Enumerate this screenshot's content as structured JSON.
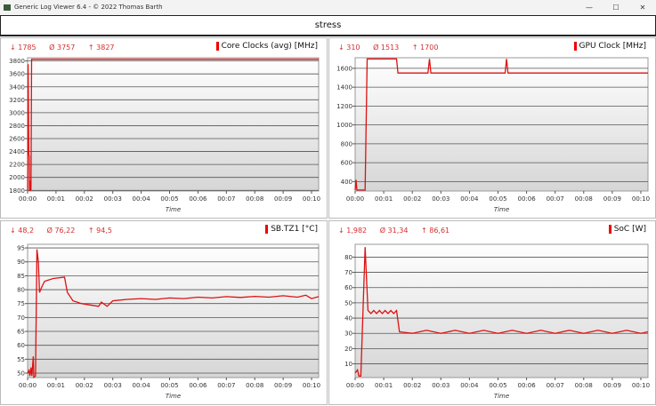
{
  "window": {
    "title": "Generic Log Viewer 6.4 - © 2022 Thomas Barth",
    "minimize": "—",
    "maximize": "☐",
    "close": "✕"
  },
  "header": {
    "title": "stress"
  },
  "colors": {
    "series": "#dd1111",
    "stats": "#d32f2f"
  },
  "chart_data": [
    {
      "type": "line",
      "title": "Core Clocks (avg) [MHz]",
      "stats": {
        "min": "↓ 1785",
        "avg": "Ø 3757",
        "max": "↑ 3827"
      },
      "xlabel": "Time",
      "xticks": [
        "00:00",
        "00:01",
        "00:02",
        "00:03",
        "00:04",
        "00:05",
        "00:06",
        "00:07",
        "00:08",
        "00:09",
        "00:10"
      ],
      "xlim": [
        0,
        10.25
      ],
      "yticks": [
        1800,
        2000,
        2200,
        2400,
        2600,
        2800,
        3000,
        3200,
        3400,
        3600,
        3800
      ],
      "ylim": [
        1790,
        3850
      ],
      "grid": true,
      "points": [
        [
          0,
          1800
        ],
        [
          0.02,
          3750
        ],
        [
          0.04,
          2350
        ],
        [
          0.06,
          2330
        ],
        [
          0.07,
          1800
        ],
        [
          0.09,
          1800
        ],
        [
          0.1,
          1950
        ],
        [
          0.12,
          1800
        ],
        [
          0.14,
          3827
        ],
        [
          10.25,
          3827
        ]
      ]
    },
    {
      "type": "line",
      "title": "GPU Clock [MHz]",
      "stats": {
        "min": "↓ 310",
        "avg": "Ø 1513",
        "max": "↑ 1700"
      },
      "xlabel": "Time",
      "xticks": [
        "00:00",
        "00:01",
        "00:02",
        "00:03",
        "00:04",
        "00:05",
        "00:06",
        "00:07",
        "00:08",
        "00:09",
        "00:10"
      ],
      "xlim": [
        0,
        10.25
      ],
      "yticks": [
        400,
        600,
        800,
        1000,
        1200,
        1400,
        1600
      ],
      "ylim": [
        300,
        1712
      ],
      "grid": true,
      "points": [
        [
          0,
          310
        ],
        [
          0.03,
          420
        ],
        [
          0.06,
          310
        ],
        [
          0.35,
          310
        ],
        [
          0.42,
          1700
        ],
        [
          1.45,
          1700
        ],
        [
          1.5,
          1550
        ],
        [
          2.55,
          1550
        ],
        [
          2.6,
          1700
        ],
        [
          2.65,
          1550
        ],
        [
          5.25,
          1550
        ],
        [
          5.3,
          1700
        ],
        [
          5.35,
          1550
        ],
        [
          10.25,
          1550
        ]
      ]
    },
    {
      "type": "line",
      "title": "SB.TZ1 [°C]",
      "stats": {
        "min": "↓ 48,2",
        "avg": "Ø 76,22",
        "max": "↑ 94,5"
      },
      "xlabel": "Time",
      "xticks": [
        "00:00",
        "00:01",
        "00:02",
        "00:03",
        "00:04",
        "00:05",
        "00:06",
        "00:07",
        "00:08",
        "00:09",
        "00:10"
      ],
      "xlim": [
        0,
        10.25
      ],
      "yticks": [
        50,
        55,
        60,
        65,
        70,
        75,
        80,
        85,
        90,
        95
      ],
      "ylim": [
        48.4,
        96.3
      ],
      "grid": true,
      "points": [
        [
          0,
          50
        ],
        [
          0.05,
          51
        ],
        [
          0.08,
          49
        ],
        [
          0.12,
          52
        ],
        [
          0.15,
          49
        ],
        [
          0.2,
          56
        ],
        [
          0.22,
          48.5
        ],
        [
          0.28,
          49
        ],
        [
          0.33,
          94.5
        ],
        [
          0.38,
          90
        ],
        [
          0.42,
          79
        ],
        [
          0.5,
          81
        ],
        [
          0.6,
          83
        ],
        [
          0.9,
          84
        ],
        [
          1.3,
          84.5
        ],
        [
          1.4,
          79
        ],
        [
          1.6,
          76
        ],
        [
          1.9,
          75
        ],
        [
          2.2,
          74.5
        ],
        [
          2.5,
          74
        ],
        [
          2.6,
          75.5
        ],
        [
          2.8,
          74
        ],
        [
          3,
          76
        ],
        [
          3.5,
          76.5
        ],
        [
          4,
          76.8
        ],
        [
          4.5,
          76.5
        ],
        [
          5,
          77
        ],
        [
          5.5,
          76.8
        ],
        [
          6,
          77.3
        ],
        [
          6.5,
          77
        ],
        [
          7,
          77.5
        ],
        [
          7.5,
          77.2
        ],
        [
          8,
          77.6
        ],
        [
          8.5,
          77.3
        ],
        [
          9,
          77.8
        ],
        [
          9.5,
          77.3
        ],
        [
          9.8,
          78
        ],
        [
          10,
          76.8
        ],
        [
          10.25,
          77.5
        ]
      ]
    },
    {
      "type": "line",
      "title": "SoC [W]",
      "stats": {
        "min": "↓ 1,982",
        "avg": "Ø 31,34",
        "max": "↑ 86,61"
      },
      "xlabel": "Time",
      "xticks": [
        "00:00",
        "00:01",
        "00:02",
        "00:03",
        "00:04",
        "00:05",
        "00:06",
        "00:07",
        "00:08",
        "00:09",
        "00:10"
      ],
      "xlim": [
        0,
        10.25
      ],
      "yticks": [
        10,
        20,
        30,
        40,
        50,
        60,
        70,
        80
      ],
      "ylim": [
        1,
        88.4
      ],
      "grid": true,
      "points": [
        [
          0,
          4
        ],
        [
          0.08,
          6
        ],
        [
          0.13,
          2
        ],
        [
          0.2,
          2
        ],
        [
          0.35,
          86.6
        ],
        [
          0.45,
          45
        ],
        [
          0.55,
          43
        ],
        [
          0.65,
          45
        ],
        [
          0.75,
          43
        ],
        [
          0.85,
          45
        ],
        [
          0.95,
          43
        ],
        [
          1.05,
          45
        ],
        [
          1.15,
          43
        ],
        [
          1.25,
          45
        ],
        [
          1.35,
          43
        ],
        [
          1.45,
          45
        ],
        [
          1.55,
          31
        ],
        [
          2,
          30
        ],
        [
          2.5,
          32
        ],
        [
          3,
          30
        ],
        [
          3.5,
          32
        ],
        [
          4,
          30
        ],
        [
          4.5,
          32
        ],
        [
          5,
          30
        ],
        [
          5.5,
          32
        ],
        [
          6,
          30
        ],
        [
          6.5,
          32
        ],
        [
          7,
          30
        ],
        [
          7.5,
          32
        ],
        [
          8,
          30
        ],
        [
          8.5,
          32
        ],
        [
          9,
          30
        ],
        [
          9.5,
          32
        ],
        [
          10,
          30
        ],
        [
          10.25,
          31
        ]
      ]
    }
  ]
}
